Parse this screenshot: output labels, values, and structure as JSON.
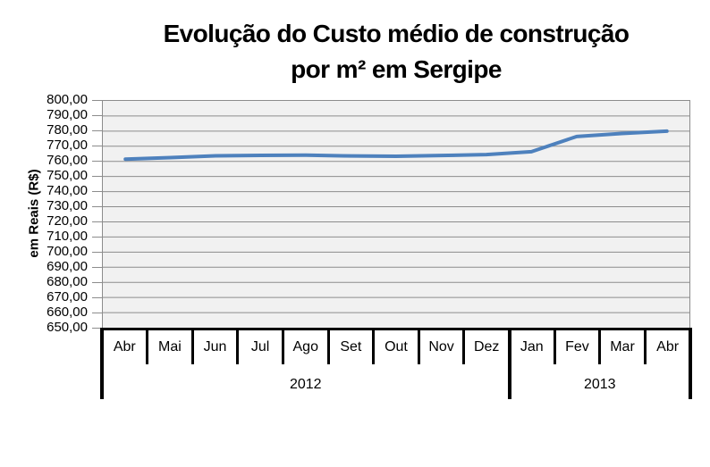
{
  "chart_data": {
    "type": "line",
    "title": "Evolução do Custo médio de construção por m² em Sergipe",
    "title_lines": [
      "Evolução do Custo médio de construção",
      "por m² em Sergipe"
    ],
    "ylabel": "em Reais (R$)",
    "xlabel": "",
    "categories": [
      "Abr",
      "Mai",
      "Jun",
      "Jul",
      "Ago",
      "Set",
      "Out",
      "Nov",
      "Dez",
      "Jan",
      "Fev",
      "Mar",
      "Abr"
    ],
    "x_groups": [
      {
        "year": "2012",
        "months": [
          "Abr",
          "Mai",
          "Jun",
          "Jul",
          "Ago",
          "Set",
          "Out",
          "Nov",
          "Dez"
        ]
      },
      {
        "year": "2013",
        "months": [
          "Jan",
          "Fev",
          "Mar",
          "Abr"
        ]
      }
    ],
    "values": [
      761.5,
      762.5,
      763.7,
      764.0,
      764.1,
      763.6,
      763.4,
      763.9,
      764.5,
      766.4,
      776.5,
      778.5,
      780.0
    ],
    "ylim": [
      650,
      800
    ],
    "y_tick_step": 10,
    "y_tick_labels": [
      "800,00",
      "790,00",
      "780,00",
      "770,00",
      "760,00",
      "750,00",
      "740,00",
      "730,00",
      "720,00",
      "710,00",
      "700,00",
      "690,00",
      "680,00",
      "670,00",
      "660,00",
      "650,00"
    ],
    "grid": true,
    "legend": false,
    "line_color": "#4E81BD",
    "plot_bg": "#F1F1F1",
    "gridline_color": "#8C8C8C",
    "axis_line_color": "#000000"
  }
}
